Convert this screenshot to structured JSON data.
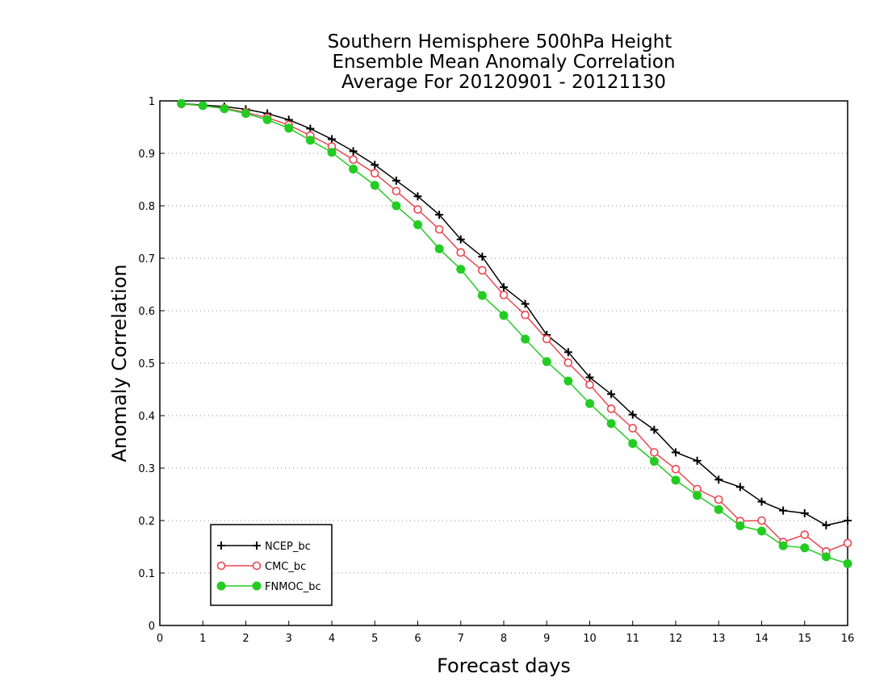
{
  "chart_data": {
    "type": "line",
    "title_lines": [
      "Southern Hemisphere 500hPa Height",
      "Ensemble Mean Anomaly Correlation",
      "Average For 20120901 - 20121130"
    ],
    "xlabel": "Forecast days",
    "ylabel": "Anomaly Correlation",
    "xlim": [
      0,
      16
    ],
    "ylim": [
      0,
      1
    ],
    "x_ticks": [
      0,
      1,
      2,
      3,
      4,
      5,
      6,
      7,
      8,
      9,
      10,
      11,
      12,
      13,
      14,
      15,
      16
    ],
    "y_ticks": [
      0,
      0.1,
      0.2,
      0.3,
      0.4,
      0.5,
      0.6,
      0.7,
      0.8,
      0.9,
      1
    ],
    "y_tick_labels": [
      "0",
      "0.1",
      "0.2",
      "0.3",
      "0.4",
      "0.5",
      "0.6",
      "0.7",
      "0.8",
      "0.9",
      "1"
    ],
    "grid": "horizontal dotted",
    "legend_position": "bottom-left",
    "x": [
      0.5,
      1.0,
      1.5,
      2.0,
      2.5,
      3.0,
      3.5,
      4.0,
      4.5,
      5.0,
      5.5,
      6.0,
      6.5,
      7.0,
      7.5,
      8.0,
      8.5,
      9.0,
      9.5,
      10.0,
      10.5,
      11.0,
      11.5,
      12.0,
      12.5,
      13.0,
      13.5,
      14.0,
      14.5,
      15.0,
      15.5,
      16.0
    ],
    "series": [
      {
        "name": "NCEP_bc",
        "color": "#000000",
        "marker": "plus",
        "values": [
          0.995,
          0.992,
          0.989,
          0.984,
          0.976,
          0.964,
          0.947,
          0.927,
          0.904,
          0.878,
          0.848,
          0.818,
          0.783,
          0.736,
          0.703,
          0.645,
          0.613,
          0.554,
          0.521,
          0.473,
          0.441,
          0.402,
          0.373,
          0.33,
          0.314,
          0.278,
          0.264,
          0.236,
          0.219,
          0.214,
          0.191,
          0.2
        ]
      },
      {
        "name": "CMC_bc",
        "color": "#e8474f",
        "marker": "open-circle",
        "values": [
          0.994,
          0.991,
          0.986,
          0.978,
          0.968,
          0.954,
          0.934,
          0.913,
          0.888,
          0.862,
          0.828,
          0.793,
          0.755,
          0.711,
          0.677,
          0.63,
          0.592,
          0.546,
          0.501,
          0.459,
          0.413,
          0.376,
          0.33,
          0.298,
          0.26,
          0.24,
          0.199,
          0.2,
          0.159,
          0.173,
          0.141,
          0.157
        ]
      },
      {
        "name": "FNMOC_bc",
        "color": "#22cc22",
        "marker": "filled-circle",
        "values": [
          0.995,
          0.991,
          0.985,
          0.976,
          0.964,
          0.948,
          0.925,
          0.902,
          0.87,
          0.839,
          0.8,
          0.764,
          0.718,
          0.679,
          0.629,
          0.591,
          0.546,
          0.503,
          0.466,
          0.423,
          0.385,
          0.347,
          0.313,
          0.277,
          0.248,
          0.221,
          0.19,
          0.18,
          0.152,
          0.148,
          0.131,
          0.118
        ]
      }
    ]
  }
}
